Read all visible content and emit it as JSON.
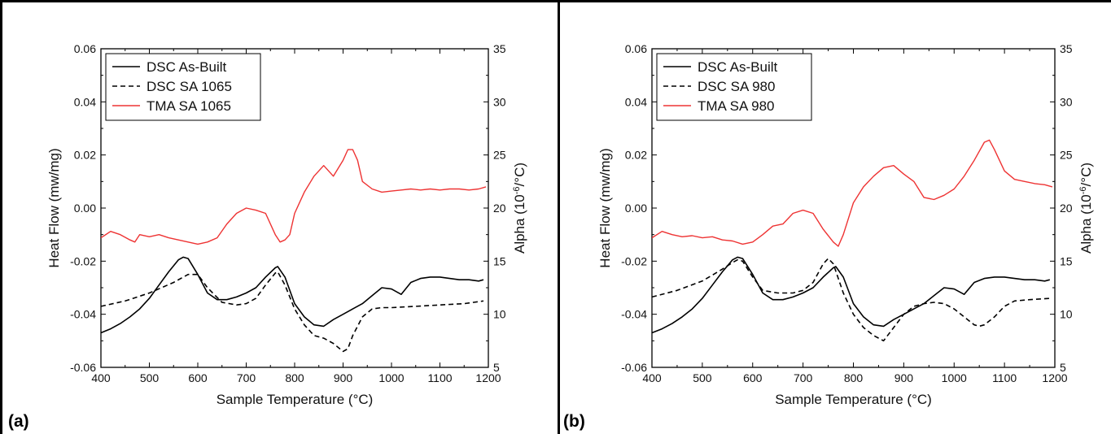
{
  "chart_data": [
    {
      "type": "line",
      "panel_label": "(a)",
      "xlabel": "Sample Temperature (°C)",
      "ylabel": "Heat Flow (mw/mg)",
      "y2label_prefix": "Alpha (10",
      "y2label_exp": "-6",
      "y2label_suffix": "/°C)",
      "xlim": [
        400,
        1200
      ],
      "ylim": [
        -0.06,
        0.06
      ],
      "y2lim": [
        5,
        35
      ],
      "xticks": [
        400,
        500,
        600,
        700,
        800,
        900,
        1000,
        1100,
        1200
      ],
      "yticks": [
        -0.06,
        -0.04,
        -0.02,
        0.0,
        0.02,
        0.04,
        0.06
      ],
      "y2ticks": [
        5,
        10,
        15,
        20,
        25,
        30,
        35
      ],
      "legend_position": "top-left",
      "series": [
        {
          "name": "DSC As-Built",
          "axis": "left",
          "color": "#000000",
          "dash": "solid",
          "x": [
            400,
            420,
            440,
            460,
            480,
            500,
            520,
            540,
            560,
            570,
            580,
            600,
            620,
            640,
            660,
            680,
            700,
            720,
            740,
            760,
            765,
            780,
            800,
            820,
            840,
            860,
            880,
            900,
            920,
            940,
            960,
            980,
            1000,
            1020,
            1040,
            1060,
            1080,
            1100,
            1120,
            1140,
            1160,
            1180,
            1190
          ],
          "y": [
            -0.047,
            -0.0455,
            -0.0435,
            -0.041,
            -0.038,
            -0.034,
            -0.029,
            -0.024,
            -0.0195,
            -0.0185,
            -0.019,
            -0.025,
            -0.032,
            -0.0345,
            -0.0345,
            -0.0335,
            -0.032,
            -0.03,
            -0.026,
            -0.0225,
            -0.022,
            -0.026,
            -0.036,
            -0.041,
            -0.044,
            -0.0445,
            -0.042,
            -0.04,
            -0.038,
            -0.036,
            -0.033,
            -0.03,
            -0.0305,
            -0.0325,
            -0.028,
            -0.0265,
            -0.026,
            -0.026,
            -0.0265,
            -0.027,
            -0.027,
            -0.0275,
            -0.027
          ]
        },
        {
          "name": "DSC SA 1065",
          "axis": "left",
          "color": "#000000",
          "dash": "dashed",
          "x": [
            400,
            450,
            500,
            550,
            580,
            600,
            620,
            650,
            680,
            700,
            720,
            740,
            760,
            765,
            780,
            800,
            820,
            840,
            860,
            880,
            900,
            910,
            920,
            940,
            960,
            980,
            1000,
            1050,
            1100,
            1150,
            1190
          ],
          "y": [
            -0.037,
            -0.035,
            -0.032,
            -0.028,
            -0.025,
            -0.025,
            -0.03,
            -0.0355,
            -0.0365,
            -0.036,
            -0.034,
            -0.029,
            -0.0245,
            -0.024,
            -0.029,
            -0.038,
            -0.044,
            -0.048,
            -0.049,
            -0.051,
            -0.054,
            -0.053,
            -0.048,
            -0.041,
            -0.038,
            -0.0375,
            -0.0375,
            -0.037,
            -0.0365,
            -0.036,
            -0.035
          ]
        },
        {
          "name": "TMA SA 1065",
          "axis": "right",
          "color": "#ee3333",
          "dash": "solid",
          "x": [
            400,
            420,
            440,
            460,
            470,
            480,
            500,
            520,
            540,
            560,
            580,
            600,
            620,
            640,
            660,
            680,
            700,
            720,
            740,
            760,
            770,
            780,
            790,
            800,
            820,
            840,
            860,
            880,
            900,
            910,
            920,
            930,
            940,
            960,
            980,
            1000,
            1020,
            1040,
            1060,
            1080,
            1100,
            1120,
            1140,
            1160,
            1180,
            1195
          ],
          "y": [
            17.2,
            17.8,
            17.5,
            17.0,
            16.8,
            17.5,
            17.3,
            17.5,
            17.2,
            17.0,
            16.8,
            16.6,
            16.8,
            17.2,
            18.5,
            19.5,
            20.0,
            19.8,
            19.5,
            17.5,
            16.8,
            17.0,
            17.5,
            19.5,
            21.5,
            23.0,
            24.0,
            23.0,
            24.5,
            25.5,
            25.5,
            24.5,
            22.5,
            21.8,
            21.5,
            21.6,
            21.7,
            21.8,
            21.7,
            21.8,
            21.7,
            21.8,
            21.8,
            21.7,
            21.8,
            22.0
          ]
        }
      ]
    },
    {
      "type": "line",
      "panel_label": "(b)",
      "xlabel": "Sample Temperature (°C)",
      "ylabel": "Heat Flow (mw/mg)",
      "y2label_prefix": "Alpha (10",
      "y2label_exp": "-6",
      "y2label_suffix": "/°C)",
      "xlim": [
        400,
        1200
      ],
      "ylim": [
        -0.06,
        0.06
      ],
      "y2lim": [
        5,
        35
      ],
      "xticks": [
        400,
        500,
        600,
        700,
        800,
        900,
        1000,
        1100,
        1200
      ],
      "yticks": [
        -0.06,
        -0.04,
        -0.02,
        0.0,
        0.02,
        0.04,
        0.06
      ],
      "y2ticks": [
        5,
        10,
        15,
        20,
        25,
        30,
        35
      ],
      "legend_position": "top-left",
      "series": [
        {
          "name": "DSC As-Built",
          "axis": "left",
          "color": "#000000",
          "dash": "solid",
          "x": [
            400,
            420,
            440,
            460,
            480,
            500,
            520,
            540,
            560,
            570,
            580,
            600,
            620,
            640,
            660,
            680,
            700,
            720,
            740,
            760,
            765,
            780,
            800,
            820,
            840,
            860,
            880,
            900,
            920,
            940,
            960,
            980,
            1000,
            1020,
            1040,
            1060,
            1080,
            1100,
            1120,
            1140,
            1160,
            1180,
            1190
          ],
          "y": [
            -0.047,
            -0.0455,
            -0.0435,
            -0.041,
            -0.038,
            -0.034,
            -0.029,
            -0.024,
            -0.0195,
            -0.0185,
            -0.019,
            -0.025,
            -0.032,
            -0.0345,
            -0.0345,
            -0.0335,
            -0.032,
            -0.03,
            -0.026,
            -0.0225,
            -0.022,
            -0.026,
            -0.036,
            -0.041,
            -0.044,
            -0.0445,
            -0.042,
            -0.04,
            -0.038,
            -0.036,
            -0.033,
            -0.03,
            -0.0305,
            -0.0325,
            -0.028,
            -0.0265,
            -0.026,
            -0.026,
            -0.0265,
            -0.027,
            -0.027,
            -0.0275,
            -0.027
          ]
        },
        {
          "name": "DSC SA 980",
          "axis": "left",
          "color": "#000000",
          "dash": "dashed",
          "x": [
            400,
            450,
            500,
            540,
            560,
            570,
            580,
            600,
            620,
            650,
            680,
            700,
            720,
            740,
            750,
            760,
            780,
            800,
            820,
            840,
            860,
            880,
            900,
            920,
            940,
            960,
            980,
            1000,
            1020,
            1040,
            1050,
            1060,
            1080,
            1100,
            1120,
            1150,
            1190
          ],
          "y": [
            -0.0335,
            -0.031,
            -0.0275,
            -0.023,
            -0.0205,
            -0.0195,
            -0.02,
            -0.026,
            -0.031,
            -0.032,
            -0.032,
            -0.031,
            -0.028,
            -0.021,
            -0.019,
            -0.021,
            -0.032,
            -0.04,
            -0.045,
            -0.048,
            -0.05,
            -0.045,
            -0.04,
            -0.037,
            -0.036,
            -0.0355,
            -0.036,
            -0.038,
            -0.041,
            -0.044,
            -0.0445,
            -0.044,
            -0.041,
            -0.037,
            -0.035,
            -0.0345,
            -0.034
          ]
        },
        {
          "name": "TMA SA 980",
          "axis": "right",
          "color": "#ee3333",
          "dash": "solid",
          "x": [
            400,
            420,
            440,
            460,
            480,
            500,
            520,
            540,
            560,
            580,
            600,
            620,
            640,
            660,
            680,
            700,
            720,
            740,
            760,
            770,
            780,
            800,
            820,
            840,
            860,
            880,
            900,
            920,
            940,
            960,
            980,
            1000,
            1020,
            1040,
            1060,
            1070,
            1080,
            1100,
            1120,
            1140,
            1160,
            1180,
            1195
          ],
          "y": [
            17.2,
            17.8,
            17.5,
            17.3,
            17.4,
            17.2,
            17.3,
            17.0,
            16.9,
            16.6,
            16.8,
            17.5,
            18.3,
            18.5,
            19.5,
            19.8,
            19.5,
            18.0,
            16.8,
            16.4,
            17.5,
            20.5,
            22.0,
            23.0,
            23.8,
            24.0,
            23.2,
            22.5,
            21.0,
            20.8,
            21.2,
            21.8,
            23.0,
            24.5,
            26.2,
            26.4,
            25.5,
            23.5,
            22.7,
            22.5,
            22.3,
            22.2,
            22.0
          ]
        }
      ]
    }
  ]
}
